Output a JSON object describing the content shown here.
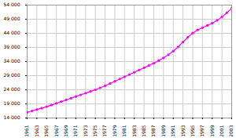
{
  "chart_data": {
    "type": "line",
    "x": [
      1961,
      1962,
      1963,
      1964,
      1965,
      1966,
      1967,
      1968,
      1969,
      1970,
      1971,
      1972,
      1973,
      1974,
      1975,
      1976,
      1977,
      1978,
      1979,
      1980,
      1981,
      1982,
      1983,
      1984,
      1985,
      1986,
      1987,
      1988,
      1989,
      1990,
      1991,
      1992,
      1993,
      1994,
      1995,
      1996,
      1997,
      1998,
      1999,
      2000,
      2001,
      2002,
      2003
    ],
    "values": [
      16000,
      16500,
      17000,
      17500,
      18000,
      18600,
      19200,
      19800,
      20400,
      21000,
      21600,
      22200,
      22800,
      23400,
      24000,
      24700,
      25400,
      26200,
      27000,
      27800,
      28600,
      29400,
      30200,
      31000,
      31800,
      32600,
      33400,
      34300,
      35300,
      36400,
      37700,
      39200,
      40900,
      42600,
      44100,
      45200,
      46000,
      46800,
      47600,
      48600,
      49800,
      51300,
      52800
    ],
    "color": "#ff00ff",
    "marker": "circle",
    "grid": true,
    "xlim": [
      1961,
      2003
    ],
    "xticks": [
      1961,
      1963,
      1965,
      1967,
      1969,
      1971,
      1973,
      1975,
      1977,
      1979,
      1981,
      1983,
      1985,
      1987,
      1989,
      1991,
      1993,
      1995,
      1997,
      1999,
      2001,
      2003
    ],
    "ylim": [
      14000,
      54000
    ],
    "yticks": [
      {
        "value": 14000,
        "label": "14 000"
      },
      {
        "value": 19000,
        "label": "19 000"
      },
      {
        "value": 24000,
        "label": "24 000"
      },
      {
        "value": 29000,
        "label": "29 000"
      },
      {
        "value": 34000,
        "label": "34 000"
      },
      {
        "value": 39000,
        "label": "39 000"
      },
      {
        "value": 44000,
        "label": "44 000"
      },
      {
        "value": 49000,
        "label": "49 000"
      },
      {
        "value": 54000,
        "label": "54 000"
      }
    ]
  }
}
